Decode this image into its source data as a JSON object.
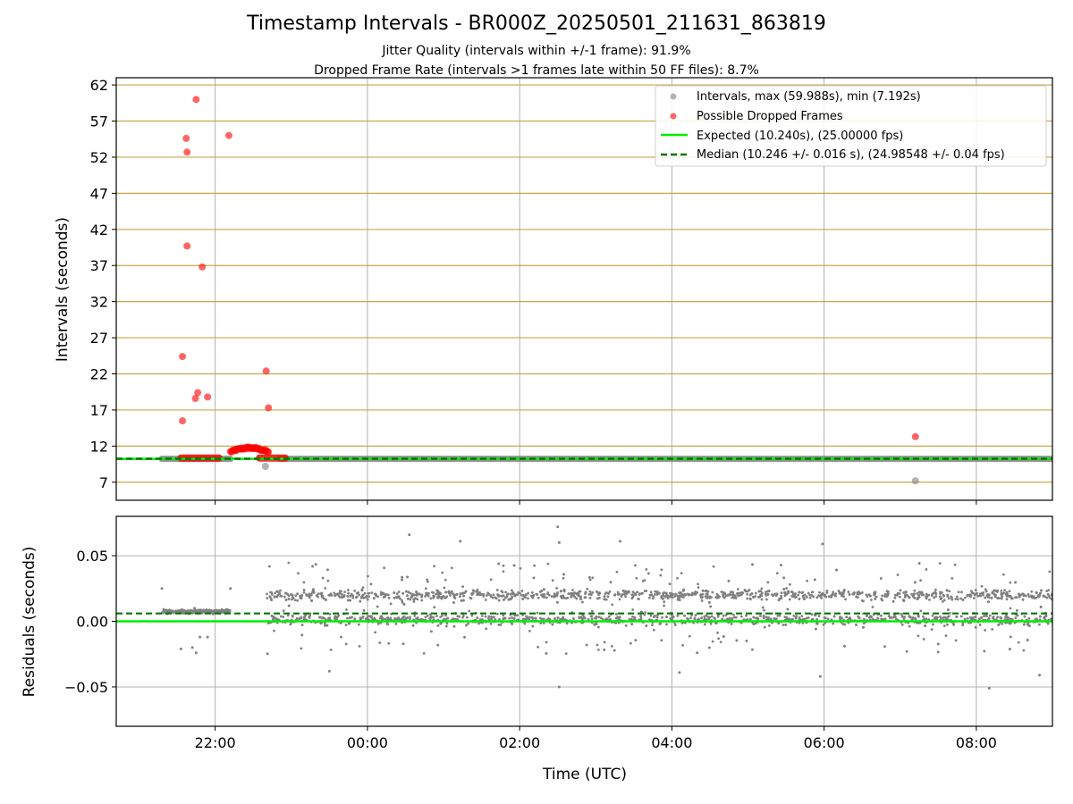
{
  "titles": {
    "main": "Timestamp Intervals - BR000Z_20250501_211631_863819",
    "jitter": "Jitter Quality (intervals within +/-1 frame): 91.9%",
    "dropped": "Dropped Frame Rate (intervals >1 frames late within 50 FF files): 8.7%"
  },
  "colors": {
    "intervals": "#808080",
    "dropped": "#ff0000",
    "expected": "#00ee00",
    "median": "#007700",
    "hgrid_top": "#c8a84b",
    "grid": "#b0b0b0"
  },
  "chart_data": [
    {
      "type": "scatter",
      "xlabel": "",
      "ylabel": "Intervals (seconds)",
      "xlim_hours": [
        20.7,
        33.0
      ],
      "ylim": [
        4.5,
        63
      ],
      "yticks": [
        "7",
        "12",
        "17",
        "22",
        "27",
        "32",
        "37",
        "42",
        "47",
        "52",
        "57",
        "62"
      ],
      "grid": "on",
      "legend_position": "top-right",
      "legend": [
        "Intervals, max (59.988s), min (7.192s)",
        "Possible Dropped Frames",
        "Expected (10.240s), (25.00000 fps)",
        "Median (10.246 +/- 0.016 s), (24.98548 +/- 0.04 fps)"
      ],
      "expected_value": 10.24,
      "median_value": 10.246,
      "series": [
        {
          "name": "Intervals, max (59.988s), min (7.192s)",
          "points": [
            [
              22.66,
              9.2
            ],
            [
              31.2,
              7.19
            ]
          ],
          "bands": [
            [
              21.3,
              22.2,
              10.24
            ],
            [
              22.85,
              33.0,
              10.24
            ]
          ]
        },
        {
          "name": "Possible Dropped Frames",
          "points": [
            [
              21.75,
              59.99
            ],
            [
              21.62,
              54.6
            ],
            [
              22.18,
              55.0
            ],
            [
              21.63,
              52.7
            ],
            [
              21.63,
              39.7
            ],
            [
              21.83,
              36.8
            ],
            [
              21.57,
              24.4
            ],
            [
              22.67,
              22.4
            ],
            [
              21.77,
              19.4
            ],
            [
              21.74,
              18.6
            ],
            [
              21.9,
              18.8
            ],
            [
              22.7,
              17.3
            ],
            [
              21.57,
              15.5
            ],
            [
              31.2,
              13.3
            ]
          ],
          "bands": [
            [
              21.55,
              22.05,
              10.35
            ],
            [
              22.58,
              22.92,
              10.35
            ]
          ],
          "arc_x": [
            22.2,
            22.7
          ],
          "arc_y": [
            11.2,
            11.7
          ]
        }
      ]
    },
    {
      "type": "scatter",
      "xlabel": "Time (UTC)",
      "ylabel": "Residuals (seconds)",
      "xlim_hours": [
        20.7,
        33.0
      ],
      "ylim": [
        -0.08,
        0.08
      ],
      "xticks": [
        "22:00",
        "00:00",
        "02:00",
        "04:00",
        "06:00",
        "08:00"
      ],
      "yticks": [
        "0.05",
        "0.00",
        "−0.05"
      ],
      "grid": "on",
      "expected_value": 0.0,
      "median_value": 0.006,
      "series": [
        {
          "name": "",
          "early_segment": [
            21.3,
            22.2
          ],
          "early_center": 0.0075,
          "main_segment": [
            22.68,
            33.0
          ],
          "clusters": [
            0.02,
            0.0015
          ],
          "outliers": [
            [
              22.2,
              0.025
            ],
            [
              21.3,
              0.025
            ],
            [
              21.73,
              0.01
            ],
            [
              21.8,
              -0.012
            ],
            [
              21.9,
              -0.012
            ],
            [
              21.7,
              -0.02
            ],
            [
              21.75,
              -0.024
            ],
            [
              21.55,
              -0.021
            ],
            [
              24.55,
              0.066
            ],
            [
              25.22,
              0.061
            ],
            [
              26.5,
              0.072
            ],
            [
              26.52,
              0.06
            ],
            [
              27.32,
              0.061
            ],
            [
              29.98,
              0.059
            ],
            [
              28.1,
              -0.039
            ],
            [
              26.52,
              -0.05
            ],
            [
              29.95,
              -0.042
            ],
            [
              32.17,
              -0.051
            ],
            [
              32.83,
              -0.041
            ],
            [
              23.5,
              -0.038
            ]
          ]
        }
      ]
    }
  ]
}
